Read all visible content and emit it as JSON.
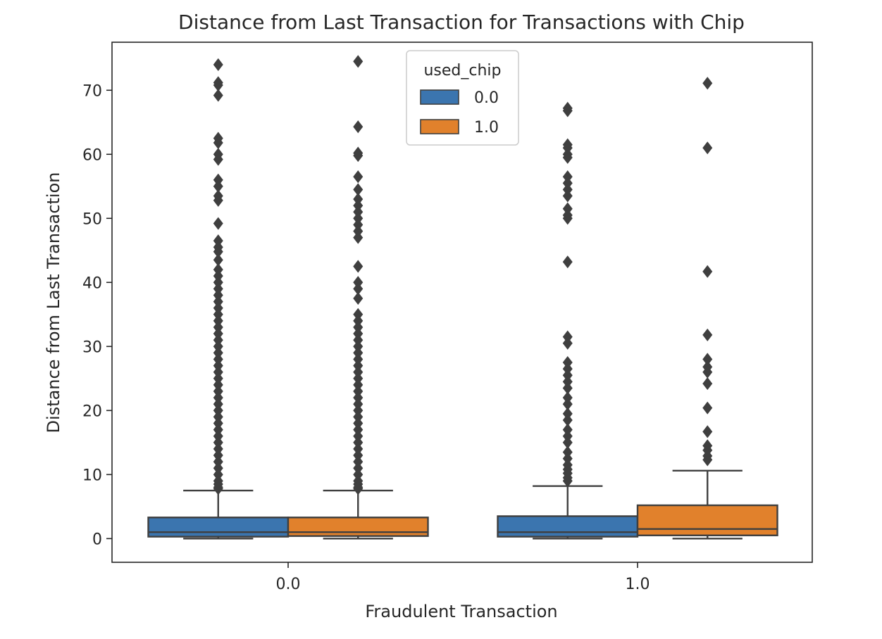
{
  "chart_data": {
    "type": "boxplot",
    "title": "Distance from Last Transaction for Transactions with Chip",
    "xlabel": "Fraudulent Transaction",
    "ylabel": "Distance from Last Transaction",
    "categories": [
      "0.0",
      "1.0"
    ],
    "ylim": [
      -3.7,
      77.5
    ],
    "yticks": [
      0,
      10,
      20,
      30,
      40,
      50,
      60,
      70
    ],
    "grid": false,
    "legend": {
      "title": "used_chip",
      "placement": "upper-center"
    },
    "series": [
      {
        "name": "0.0",
        "color": "#3b75af",
        "boxes": [
          {
            "category": "0.0",
            "q1": 0.3,
            "median": 1.0,
            "q3": 3.3,
            "whisker_low": 0.0,
            "whisker_high": 7.5,
            "outliers": [
              74.0,
              71.2,
              70.8,
              69.2,
              62.5,
              61.8,
              60.0,
              59.2,
              56.0,
              55.0,
              53.5,
              52.8,
              49.2,
              46.5,
              45.5,
              44.8,
              43.5,
              42.0,
              41.0,
              40.0,
              39.0,
              38.0,
              37.0,
              36.0,
              35.0,
              34.0,
              33.0,
              32.0,
              31.0,
              30.0,
              29.0,
              28.0,
              27.0,
              26.0,
              25.0,
              24.0,
              23.0,
              22.0,
              21.0,
              20.0,
              19.0,
              18.0,
              17.0,
              16.0,
              15.0,
              14.0,
              13.0,
              12.0,
              11.0,
              10.0,
              9.0,
              8.5,
              8.0,
              7.8
            ]
          },
          {
            "category": "1.0",
            "q1": 0.3,
            "median": 1.0,
            "q3": 3.5,
            "whisker_low": 0.0,
            "whisker_high": 8.2,
            "outliers": [
              67.2,
              66.8,
              61.5,
              61.0,
              60.0,
              59.5,
              56.5,
              55.5,
              54.5,
              53.5,
              51.5,
              50.5,
              50.0,
              43.2,
              31.5,
              30.5,
              27.5,
              26.5,
              25.5,
              24.5,
              23.5,
              22.0,
              21.0,
              19.5,
              18.5,
              17.0,
              16.0,
              15.0,
              13.5,
              12.5,
              11.5,
              10.8,
              10.2,
              9.5,
              9.0
            ]
          }
        ]
      },
      {
        "name": "1.0",
        "color": "#e1812c",
        "boxes": [
          {
            "category": "0.0",
            "q1": 0.4,
            "median": 1.0,
            "q3": 3.3,
            "whisker_low": 0.0,
            "whisker_high": 7.5,
            "outliers": [
              74.5,
              64.3,
              60.2,
              59.8,
              56.5,
              54.5,
              53.0,
              52.0,
              51.0,
              50.0,
              49.0,
              48.0,
              47.0,
              42.5,
              40.0,
              39.0,
              37.5,
              35.0,
              34.0,
              33.0,
              32.0,
              31.0,
              30.0,
              29.0,
              28.0,
              27.0,
              26.0,
              25.0,
              24.0,
              23.0,
              22.0,
              21.0,
              20.0,
              19.0,
              18.0,
              17.0,
              16.0,
              15.0,
              14.0,
              13.0,
              12.0,
              11.0,
              10.0,
              9.0,
              8.5,
              8.0,
              7.8
            ]
          },
          {
            "category": "1.0",
            "q1": 0.5,
            "median": 1.5,
            "q3": 5.2,
            "whisker_low": 0.0,
            "whisker_high": 10.6,
            "outliers": [
              71.1,
              61.0,
              41.7,
              31.8,
              28.0,
              26.8,
              26.0,
              24.2,
              20.4,
              16.7,
              14.5,
              13.8,
              12.9,
              12.3
            ]
          }
        ]
      }
    ]
  }
}
